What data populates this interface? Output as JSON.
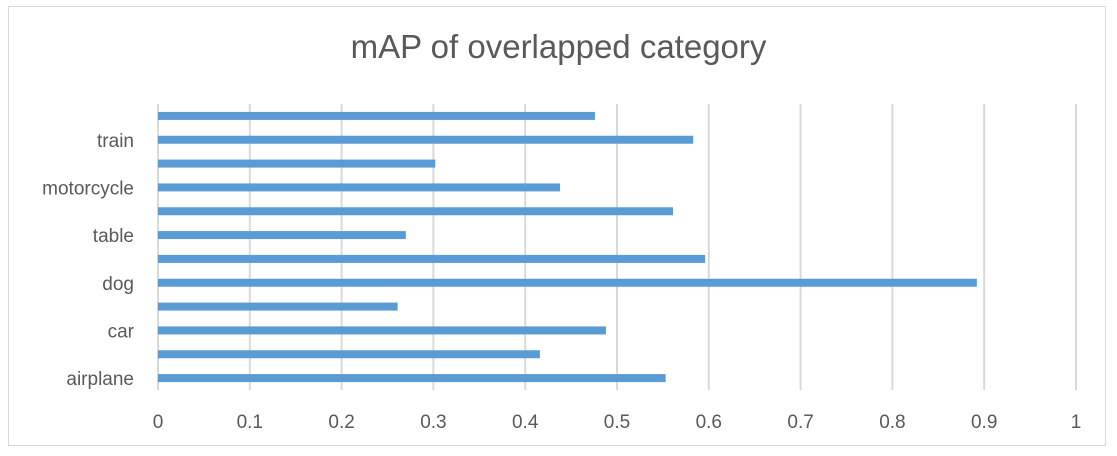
{
  "chart_data": {
    "type": "bar",
    "orientation": "horizontal",
    "title": "mAP of overlapped category",
    "xlabel": "",
    "ylabel": "",
    "xlim": [
      0,
      1
    ],
    "x_ticks": [
      "0",
      "0.1",
      "0.2",
      "0.3",
      "0.4",
      "0.5",
      "0.6",
      "0.7",
      "0.8",
      "0.9",
      "1"
    ],
    "categories": [
      "airplane",
      "",
      "car",
      "",
      "dog",
      "",
      "table",
      "",
      "motorcycle",
      "",
      "train",
      ""
    ],
    "values": [
      0.553,
      0.416,
      0.488,
      0.261,
      0.892,
      0.596,
      0.27,
      0.561,
      0.438,
      0.302,
      0.583,
      0.476
    ],
    "bar_color": "#5b9bd5",
    "grid": true,
    "legend": "none"
  }
}
